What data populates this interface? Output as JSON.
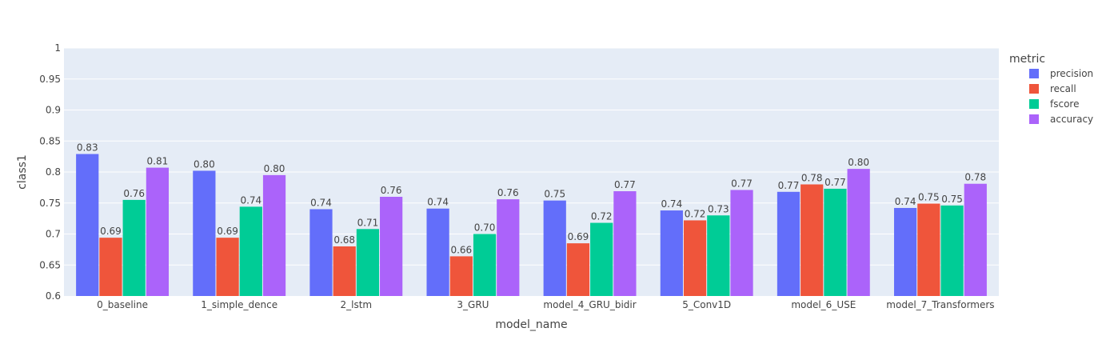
{
  "chart_data": {
    "type": "bar",
    "title": "",
    "xlabel": "model_name",
    "ylabel": "class1",
    "ylim": [
      0.6,
      1.0
    ],
    "yticks": [
      "0.6",
      "0.65",
      "0.7",
      "0.75",
      "0.8",
      "0.85",
      "0.9",
      "0.95",
      "1"
    ],
    "grid": true,
    "legend": {
      "title": "metric",
      "placement": "top-right"
    },
    "categories": [
      "0_baseline",
      "1_simple_dence",
      "2_lstm",
      "3_GRU",
      "model_4_GRU_bidir",
      "5_Conv1D",
      "model_6_USE",
      "model_7_Transformers"
    ],
    "series": [
      {
        "name": "precision",
        "color": "#636efa",
        "values": [
          0.829,
          0.802,
          0.74,
          0.741,
          0.754,
          0.738,
          0.768,
          0.742
        ],
        "labels": [
          "0.83",
          "0.80",
          "0.74",
          "0.74",
          "0.75",
          "0.74",
          "0.77",
          "0.74"
        ]
      },
      {
        "name": "recall",
        "color": "#ef553b",
        "values": [
          0.694,
          0.694,
          0.68,
          0.664,
          0.685,
          0.722,
          0.78,
          0.749
        ],
        "labels": [
          "0.69",
          "0.69",
          "0.68",
          "0.66",
          "0.69",
          "0.72",
          "0.78",
          "0.75"
        ]
      },
      {
        "name": "fscore",
        "color": "#00cc96",
        "values": [
          0.755,
          0.744,
          0.708,
          0.7,
          0.718,
          0.73,
          0.773,
          0.746
        ],
        "labels": [
          "0.76",
          "0.74",
          "0.71",
          "0.70",
          "0.72",
          "0.73",
          "0.77",
          "0.75"
        ]
      },
      {
        "name": "accuracy",
        "color": "#ab63fa",
        "values": [
          0.807,
          0.795,
          0.76,
          0.756,
          0.769,
          0.771,
          0.805,
          0.781
        ],
        "labels": [
          "0.81",
          "0.80",
          "0.76",
          "0.76",
          "0.77",
          "0.77",
          "0.80",
          "0.78"
        ]
      }
    ]
  }
}
